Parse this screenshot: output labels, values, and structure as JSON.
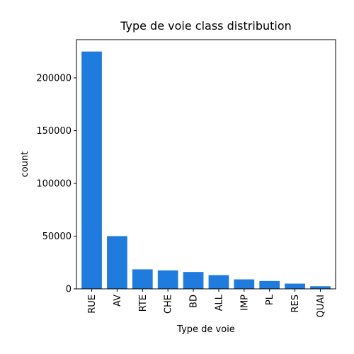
{
  "chart_data": {
    "type": "bar",
    "title": "Type de voie class distribution",
    "xlabel": "Type de voie",
    "ylabel": "count",
    "categories": [
      "RUE",
      "AV",
      "RTE",
      "CHE",
      "BD",
      "ALL",
      "IMP",
      "PL",
      "RES",
      "QUAI"
    ],
    "values": [
      225000,
      50000,
      18500,
      17500,
      16000,
      13000,
      9000,
      7500,
      5000,
      2500
    ],
    "yticks": [
      0,
      50000,
      100000,
      150000,
      200000
    ],
    "ytick_labels": [
      "0",
      "50000",
      "100000",
      "150000",
      "200000"
    ],
    "ylim": [
      0,
      236250
    ],
    "grid": false,
    "colors": {
      "bar": "#1f7bde"
    }
  }
}
